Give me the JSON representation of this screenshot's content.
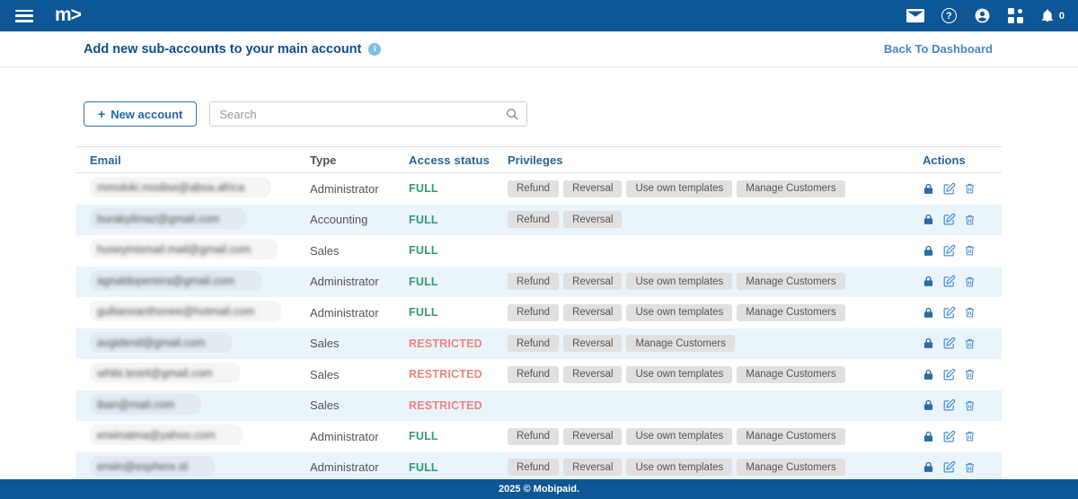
{
  "topbar": {
    "logo_text": "m>",
    "notification_count": "0"
  },
  "page_header": {
    "title": "Add new sub-accounts to your main account",
    "back_link": "Back To Dashboard"
  },
  "toolbar": {
    "new_account_plus": "+",
    "new_account_button": "New account",
    "search_placeholder": "Search",
    "search_value": ""
  },
  "table": {
    "columns": [
      "Email",
      "Type",
      "Access status",
      "Privileges",
      "Actions"
    ],
    "rows": [
      {
        "email": "mmoloki.modise@absa.africa",
        "type": "Administrator",
        "status": "FULL",
        "privileges": [
          "Refund",
          "Reversal",
          "Use own templates",
          "Manage Customers"
        ]
      },
      {
        "email": "burakyilmaz@gmail.com",
        "type": "Accounting",
        "status": "FULL",
        "privileges": [
          "Refund",
          "Reversal"
        ]
      },
      {
        "email": "huseyinismail.mail@gmail.com",
        "type": "Sales",
        "status": "FULL",
        "privileges": []
      },
      {
        "email": "agnaldopereira@gmail.com",
        "type": "Administrator",
        "status": "FULL",
        "privileges": [
          "Refund",
          "Reversal",
          "Use own templates",
          "Manage Customers"
        ]
      },
      {
        "email": "gullianoanthonee@hotmail.com",
        "type": "Administrator",
        "status": "FULL",
        "privileges": [
          "Refund",
          "Reversal",
          "Use own templates",
          "Manage Customers"
        ]
      },
      {
        "email": "avgidend@gmail.com",
        "type": "Sales",
        "status": "RESTRICTED",
        "privileges": [
          "Refund",
          "Reversal",
          "Manage Customers"
        ]
      },
      {
        "email": "whibi.test4@gmail.com",
        "type": "Sales",
        "status": "RESTRICTED",
        "privileges": [
          "Refund",
          "Reversal",
          "Use own templates",
          "Manage Customers"
        ]
      },
      {
        "email": "iban@mail.com",
        "type": "Sales",
        "status": "RESTRICTED",
        "privileges": []
      },
      {
        "email": "erwinatma@yahoo.com",
        "type": "Administrator",
        "status": "FULL",
        "privileges": [
          "Refund",
          "Reversal",
          "Use own templates",
          "Manage Customers"
        ]
      },
      {
        "email": "erwin@esphere.id",
        "type": "Administrator",
        "status": "FULL",
        "privileges": [
          "Refund",
          "Reversal",
          "Use own templates",
          "Manage Customers"
        ]
      }
    ]
  },
  "footer": {
    "text": "2025 © Mobipaid."
  },
  "colors": {
    "brand_blue": "#0d5796",
    "title_blue": "#0d4f91",
    "link_blue": "#4a86c8",
    "header_blue": "#2c6496",
    "full_green": "#2e9e6d",
    "restricted_red": "#f2847c",
    "row_alt": "#e9f4fb",
    "chip_bg": "#e0e0e0"
  }
}
